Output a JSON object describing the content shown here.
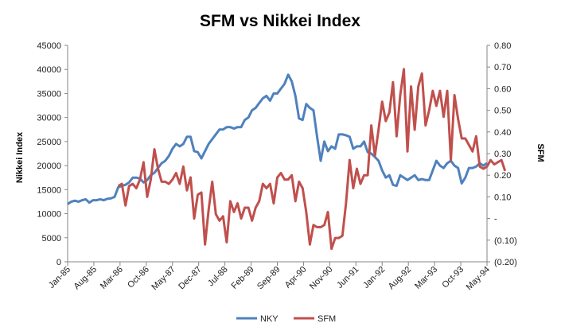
{
  "chart_data": {
    "type": "line",
    "title": "SFM vs Nikkei Index",
    "ylabel": "Nikkei Index",
    "y2label": "SFM",
    "ylim": [
      0,
      45000
    ],
    "y2lim": [
      -0.2,
      0.8
    ],
    "y_ticks": [
      "0",
      "5000",
      "10000",
      "15000",
      "20000",
      "25000",
      "30000",
      "35000",
      "40000",
      "45000"
    ],
    "y2_ticks": [
      "(0.20)",
      "(0.10)",
      "-",
      "0.10",
      "0.20",
      "0.30",
      "0.40",
      "0.50",
      "0.60",
      "0.70",
      "0.80"
    ],
    "x_ticks": [
      "Jan-85",
      "Aug-85",
      "Mar-86",
      "Oct-86",
      "May-87",
      "Dec-87",
      "Jul-88",
      "Feb-89",
      "Sep-89",
      "Apr-90",
      "Nov-90",
      "Jun-91",
      "Jan-92",
      "Aug-92",
      "Mar-93",
      "Oct-93",
      "May-94"
    ],
    "grid": false,
    "legend_position": "bottom",
    "series": [
      {
        "name": "NKY",
        "color": "#4F81BD",
        "axis": "left",
        "start": 0,
        "values": [
          12000,
          12500,
          12700,
          12500,
          12800,
          13000,
          12300,
          12800,
          12800,
          13000,
          12800,
          13100,
          13200,
          13500,
          15500,
          15800,
          16000,
          16500,
          17500,
          17500,
          17300,
          16500,
          17000,
          18000,
          18500,
          19500,
          20500,
          21000,
          22000,
          23500,
          24500,
          24000,
          24500,
          26000,
          26000,
          23000,
          22800,
          21500,
          23000,
          24500,
          25500,
          26500,
          27500,
          27500,
          28000,
          28000,
          27700,
          28000,
          28000,
          29500,
          30000,
          31500,
          32000,
          33000,
          34000,
          34500,
          33500,
          35000,
          35000,
          36000,
          37000,
          38900,
          37500,
          34500,
          29800,
          29500,
          32800,
          32000,
          31500,
          26000,
          21000,
          25000,
          23000,
          24000,
          23500,
          26500,
          26500,
          26300,
          26000,
          23500,
          24000,
          24000,
          25000,
          22800,
          22500,
          21800,
          21000,
          19000,
          17500,
          18000,
          16000,
          15800,
          18000,
          17500,
          17000,
          17500,
          18000,
          17000,
          17200,
          17000,
          17000,
          19000,
          21000,
          20000,
          19500,
          20500,
          21000,
          20000,
          19500,
          16300,
          17500,
          19500,
          19500,
          19800,
          20500,
          20000,
          20500
        ]
      },
      {
        "name": "SFM",
        "color": "#C0504D",
        "axis": "right",
        "start": 14,
        "values": [
          0.15,
          0.16,
          0.06,
          0.15,
          0.16,
          0.14,
          0.18,
          0.26,
          0.1,
          0.18,
          0.32,
          0.23,
          0.17,
          0.17,
          0.16,
          0.18,
          0.21,
          0.16,
          0.24,
          0.13,
          0.19,
          0.0,
          0.11,
          0.12,
          -0.12,
          0.04,
          0.17,
          0.02,
          -0.01,
          0.01,
          -0.11,
          0.08,
          0.03,
          0.07,
          0.0,
          0.05,
          0.05,
          -0.01,
          0.05,
          0.08,
          0.16,
          0.14,
          0.16,
          0.07,
          0.19,
          0.21,
          0.18,
          0.18,
          0.2,
          0.08,
          0.17,
          0.14,
          0.03,
          -0.12,
          -0.03,
          -0.04,
          -0.04,
          -0.03,
          0.03,
          -0.14,
          -0.09,
          -0.09,
          -0.08,
          0.07,
          0.27,
          0.14,
          0.23,
          0.16,
          0.2,
          0.2,
          0.43,
          0.29,
          0.41,
          0.54,
          0.45,
          0.49,
          0.63,
          0.38,
          0.57,
          0.69,
          0.31,
          0.61,
          0.41,
          0.61,
          0.67,
          0.43,
          0.5,
          0.59,
          0.52,
          0.59,
          0.47,
          0.59,
          0.27,
          0.57,
          0.46,
          0.37,
          0.37,
          0.34,
          0.31,
          0.38,
          0.24,
          0.23,
          0.24,
          0.27,
          0.25,
          0.26,
          0.27,
          0.22
        ]
      }
    ]
  }
}
